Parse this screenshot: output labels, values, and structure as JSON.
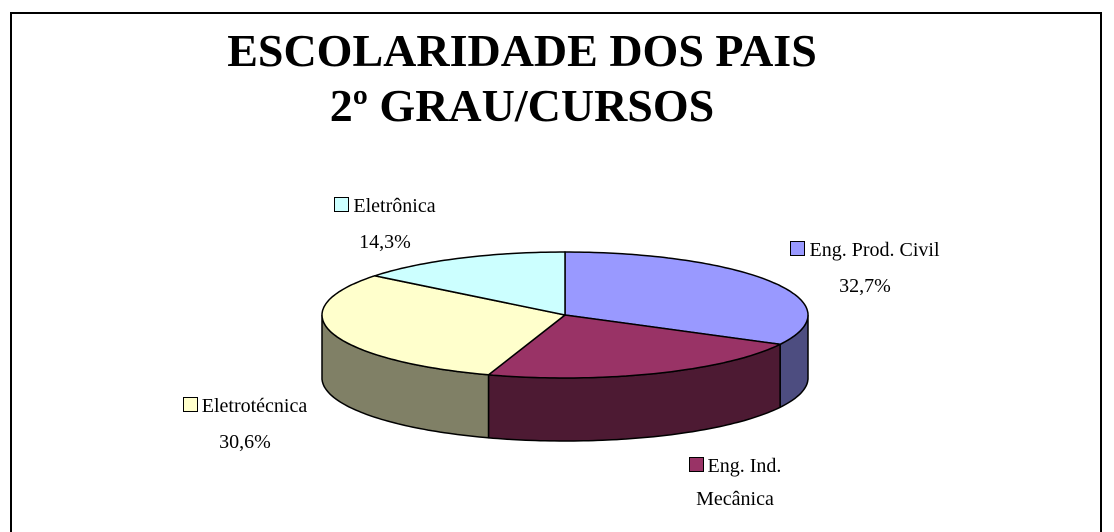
{
  "chart_data": {
    "type": "pie3d",
    "title": [
      "ESCOLARIDADE DOS PAIS",
      "2º GRAU/CURSOS"
    ],
    "categories": [
      "Eng. Prod. Civil",
      "Eng. Ind. Mecânica",
      "Eletrotécnica",
      "Eletrônica"
    ],
    "values": [
      32.7,
      22.4,
      30.6,
      14.3
    ],
    "value_labels": [
      "32,7%",
      null,
      "30,6%",
      "14,3%"
    ],
    "colors": [
      "#9999ff",
      "#993366",
      "#ffffcc",
      "#ccffff"
    ]
  }
}
